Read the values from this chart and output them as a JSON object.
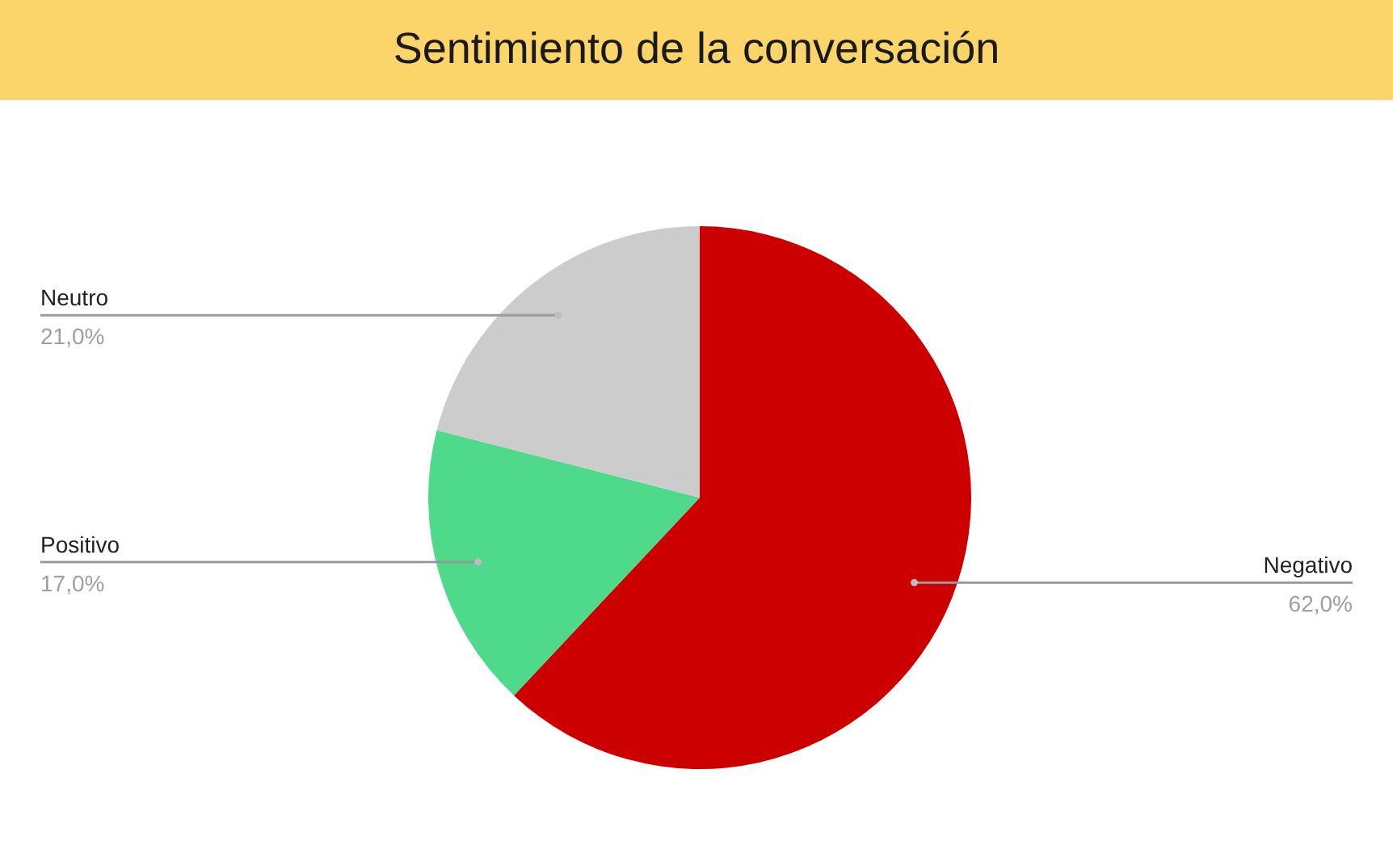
{
  "chart_data": {
    "type": "pie",
    "title": "Sentimiento de la conversación",
    "categories": [
      "Negativo",
      "Positivo",
      "Neutro"
    ],
    "values": [
      62.0,
      17.0,
      21.0
    ],
    "colors": [
      "#cc0000",
      "#4fd98b",
      "#cccccc"
    ],
    "value_labels": [
      "62,0%",
      "17,0%",
      "21,0%"
    ]
  }
}
